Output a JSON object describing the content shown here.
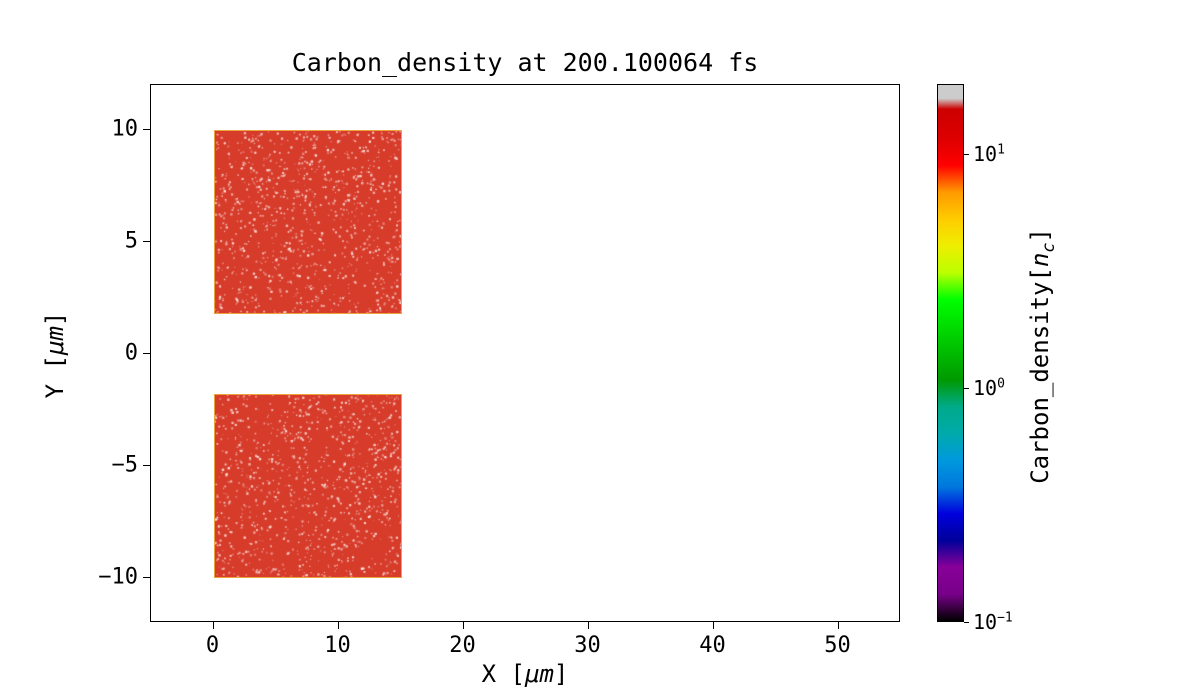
{
  "chart_data": {
    "type": "heatmap",
    "title": "Carbon_density at 200.100064 fs",
    "xlabel": "X [μm]",
    "ylabel": "Y [μm]",
    "xlabel_parts": {
      "prefix": "X [",
      "unit": "μm",
      "suffix": "]"
    },
    "ylabel_parts": {
      "prefix": "Y [",
      "unit": "μm",
      "suffix": "]"
    },
    "xlim": [
      -5,
      55
    ],
    "ylim": [
      -12,
      12
    ],
    "grid": false,
    "x_ticks": [
      {
        "value": 0,
        "label": "0"
      },
      {
        "value": 10,
        "label": "10"
      },
      {
        "value": 20,
        "label": "20"
      },
      {
        "value": 30,
        "label": "30"
      },
      {
        "value": 40,
        "label": "40"
      },
      {
        "value": 50,
        "label": "50"
      }
    ],
    "y_ticks": [
      {
        "value": -10,
        "label": "−10"
      },
      {
        "value": -5,
        "label": "−5"
      },
      {
        "value": 0,
        "label": "0"
      },
      {
        "value": 5,
        "label": "5"
      },
      {
        "value": 10,
        "label": "10"
      }
    ],
    "blocks": [
      {
        "x0": 0,
        "x1": 15,
        "y0": 1.8,
        "y1": 10,
        "value_nc": 12,
        "fill": "#d73b2a",
        "edge": "#eda33b"
      },
      {
        "x0": 0,
        "x1": 15,
        "y0": -10,
        "y1": -1.8,
        "value_nc": 12,
        "fill": "#d73b2a",
        "edge": "#eda33b"
      }
    ],
    "background_value": 0,
    "colorbar": {
      "label": "Carbon_density[n_c]",
      "label_parts": {
        "prefix": "Carbon_density[",
        "var": "n",
        "sub": "c",
        "suffix": "]"
      },
      "scale": "log",
      "min": 0.1,
      "max": 20,
      "colormap": "nipy_spectral",
      "ticks": [
        {
          "value": 10,
          "base": "10",
          "exp": "1"
        },
        {
          "value": 1,
          "base": "10",
          "exp": "0"
        },
        {
          "value": 0.1,
          "base": "10",
          "exp": "−1"
        }
      ],
      "stops": [
        {
          "t": 0.0,
          "color": "#000000"
        },
        {
          "t": 0.05,
          "color": "#770088"
        },
        {
          "t": 0.1,
          "color": "#880099"
        },
        {
          "t": 0.15,
          "color": "#000099"
        },
        {
          "t": 0.2,
          "color": "#0000dd"
        },
        {
          "t": 0.25,
          "color": "#0077dd"
        },
        {
          "t": 0.3,
          "color": "#0099dd"
        },
        {
          "t": 0.35,
          "color": "#00aaaa"
        },
        {
          "t": 0.4,
          "color": "#00aa88"
        },
        {
          "t": 0.45,
          "color": "#009900"
        },
        {
          "t": 0.5,
          "color": "#00bb00"
        },
        {
          "t": 0.55,
          "color": "#00dd00"
        },
        {
          "t": 0.6,
          "color": "#00ff00"
        },
        {
          "t": 0.65,
          "color": "#bbff00"
        },
        {
          "t": 0.7,
          "color": "#eeee00"
        },
        {
          "t": 0.75,
          "color": "#ffcc00"
        },
        {
          "t": 0.8,
          "color": "#ff9900"
        },
        {
          "t": 0.85,
          "color": "#ff0000"
        },
        {
          "t": 0.9,
          "color": "#dd0000"
        },
        {
          "t": 0.955,
          "color": "#cc0000"
        },
        {
          "t": 0.975,
          "color": "#cccccc"
        },
        {
          "t": 1.0,
          "color": "#cccccc"
        }
      ]
    }
  }
}
